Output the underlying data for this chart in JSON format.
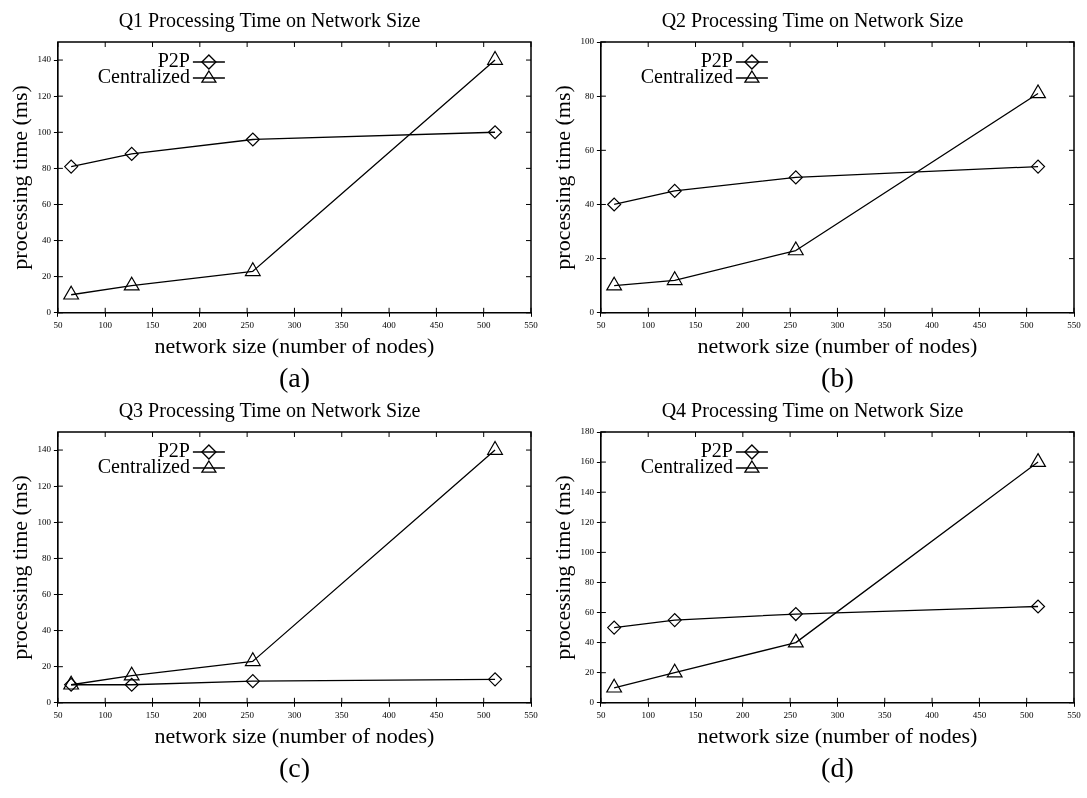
{
  "chart_data": [
    {
      "type": "line",
      "title": "Q1 Processing Time on Network Size",
      "xlabel": "network size (number of nodes)",
      "ylabel": "processing time (ms)",
      "annotations": [
        "(a)"
      ],
      "x": [
        64,
        128,
        256,
        512
      ],
      "xlim": [
        50,
        550
      ],
      "xticks": [
        50,
        100,
        150,
        200,
        250,
        300,
        350,
        400,
        450,
        500,
        550
      ],
      "ylim": [
        0,
        150
      ],
      "yticks": [
        0,
        20,
        40,
        60,
        80,
        100,
        120,
        140
      ],
      "legend": "top left",
      "series": [
        {
          "name": "P2P",
          "color": "#000000",
          "marker": "diamond",
          "values": [
            81,
            88,
            96,
            100
          ]
        },
        {
          "name": "Centralized",
          "color": "#000000",
          "marker": "triangle",
          "values": [
            10,
            15,
            23,
            140
          ]
        }
      ]
    },
    {
      "type": "line",
      "title": "Q2 Processing Time on Network Size",
      "xlabel": "network size (number of nodes)",
      "ylabel": "processing time (ms)",
      "annotations": [
        "(b)"
      ],
      "x": [
        64,
        128,
        256,
        512
      ],
      "xlim": [
        50,
        550
      ],
      "xticks": [
        50,
        100,
        150,
        200,
        250,
        300,
        350,
        400,
        450,
        500,
        550
      ],
      "ylim": [
        0,
        100
      ],
      "yticks": [
        0,
        20,
        40,
        60,
        80,
        100
      ],
      "legend": "top left",
      "series": [
        {
          "name": "P2P",
          "color": "#000000",
          "marker": "diamond",
          "values": [
            40,
            45,
            50,
            54
          ]
        },
        {
          "name": "Centralized",
          "color": "#000000",
          "marker": "triangle",
          "values": [
            10,
            12,
            23,
            81
          ]
        }
      ]
    },
    {
      "type": "line",
      "title": "Q3 Processing Time on Network Size",
      "xlabel": "network size (number of nodes)",
      "ylabel": "processing time (ms)",
      "annotations": [
        "(c)"
      ],
      "x": [
        64,
        128,
        256,
        512
      ],
      "xlim": [
        50,
        550
      ],
      "xticks": [
        50,
        100,
        150,
        200,
        250,
        300,
        350,
        400,
        450,
        500,
        550
      ],
      "ylim": [
        0,
        150
      ],
      "yticks": [
        0,
        20,
        40,
        60,
        80,
        100,
        120,
        140
      ],
      "legend": "top left",
      "series": [
        {
          "name": "P2P",
          "color": "#000000",
          "marker": "diamond",
          "values": [
            10,
            10,
            12,
            13
          ]
        },
        {
          "name": "Centralized",
          "color": "#000000",
          "marker": "triangle",
          "values": [
            10,
            15,
            23,
            140
          ]
        }
      ]
    },
    {
      "type": "line",
      "title": "Q4 Processing Time on Network Size",
      "xlabel": "network size (number of nodes)",
      "ylabel": "processing time (ms)",
      "annotations": [
        "(d)"
      ],
      "x": [
        64,
        128,
        256,
        512
      ],
      "xlim": [
        50,
        550
      ],
      "xticks": [
        50,
        100,
        150,
        200,
        250,
        300,
        350,
        400,
        450,
        500,
        550
      ],
      "ylim": [
        0,
        180
      ],
      "yticks": [
        0,
        20,
        40,
        60,
        80,
        100,
        120,
        140,
        160,
        180
      ],
      "legend": "top left",
      "series": [
        {
          "name": "P2P",
          "color": "#000000",
          "marker": "diamond",
          "values": [
            50,
            55,
            59,
            64
          ]
        },
        {
          "name": "Centralized",
          "color": "#000000",
          "marker": "triangle",
          "values": [
            10,
            20,
            40,
            160
          ]
        }
      ]
    }
  ]
}
